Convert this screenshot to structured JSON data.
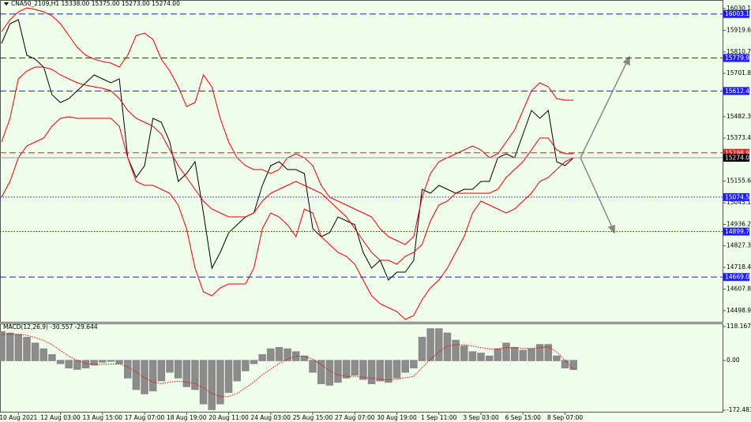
{
  "chart_data": [
    {
      "type": "line",
      "title": "CNA50_2109,H1  15338.00 15375.00 15273.00 15274.00",
      "ylim": [
        14442,
        16074
      ],
      "yticks": [
        {
          "value": 16030.15,
          "label": "16030.15"
        },
        {
          "value": 15919.6,
          "label": "15919.60"
        },
        {
          "value": 15810.7,
          "label": "15810.70"
        },
        {
          "value": 15701.8,
          "label": "15701.80"
        },
        {
          "value": 15482.35,
          "label": "15482.35"
        },
        {
          "value": 15373.45,
          "label": "15373.45"
        },
        {
          "value": 15155.65,
          "label": "15155.65"
        },
        {
          "value": 15045.1,
          "label": "15045.10"
        },
        {
          "value": 14936.2,
          "label": "14936.20"
        },
        {
          "value": 14827.3,
          "label": "14827.30"
        },
        {
          "value": 14718.4,
          "label": "14718.40"
        },
        {
          "value": 14607.85,
          "label": "14607.85"
        },
        {
          "value": 14498.95,
          "label": "14498.95"
        }
      ],
      "levels": [
        {
          "value": 16003.11,
          "label": "16003.11",
          "color": "#1c1cff",
          "dash": "dashed"
        },
        {
          "value": 15779.9,
          "label": "15779.90",
          "color": "#1c1cff",
          "dash": "dashed"
        },
        {
          "value": 15612.49,
          "label": "15612.49",
          "color": "#1c1cff",
          "dash": "dashed"
        },
        {
          "value": 15298.93,
          "label": "15298.93",
          "color": "#e02020",
          "dash": "dashed"
        },
        {
          "value": 15274.0,
          "label": "15274.00",
          "color": "#000000",
          "dash": "solid"
        },
        {
          "value": 15074.5,
          "label": "15074.50",
          "color": "#1c1cff",
          "dash": "dotted"
        },
        {
          "value": 14899.79,
          "label": "14899.79",
          "color": "#1c1cff",
          "dash": "dotted"
        },
        {
          "value": 14669.06,
          "label": "14669.06",
          "color": "#1c1cff",
          "dash": "dashed"
        }
      ],
      "series": [
        {
          "color": "#000000",
          "values": [
            15854,
            15954,
            15974,
            15794,
            15774,
            15734,
            15594,
            15554,
            15574,
            15614,
            15654,
            15694,
            15674,
            15654,
            15674,
            15274,
            15174,
            15234,
            15474,
            15454,
            15354,
            15154,
            15194,
            15254,
            14994,
            14714,
            14794,
            14894,
            14934,
            14974,
            14994,
            15134,
            15234,
            15254,
            15214,
            15214,
            15194,
            14914,
            14874,
            14894,
            14974,
            14954,
            14934,
            14794,
            14714,
            14754,
            14654,
            14694,
            14694,
            14754,
            15114,
            15094,
            15134,
            15114,
            15094,
            15114,
            15114,
            15154,
            15154,
            15274,
            15294,
            15274,
            15394,
            15514,
            15474,
            15514,
            15254,
            15234,
            15274
          ]
        },
        {
          "color": "#e00000",
          "values": [
            15914,
            15974,
            16014,
            16034,
            16026,
            16014,
            15994,
            15954,
            15894,
            15834,
            15794,
            15774,
            15762,
            15754,
            15734,
            15794,
            15894,
            15906,
            15874,
            15774,
            15714,
            15634,
            15534,
            15554,
            15694,
            15634,
            15474,
            15354,
            15274,
            15234,
            15214,
            15214,
            15194,
            15214,
            15274,
            15294,
            15274,
            15234,
            15134,
            15074,
            15054,
            15034,
            15014,
            14994,
            14974,
            14914,
            14874,
            14854,
            14834,
            14874,
            15074,
            15194,
            15254,
            15274,
            15294,
            15314,
            15334,
            15314,
            15274,
            15294,
            15354,
            15414,
            15514,
            15614,
            15654,
            15634,
            15574,
            15566,
            15566
          ]
        },
        {
          "color": "#e00000",
          "values": [
            15354,
            15474,
            15674,
            15714,
            15734,
            15734,
            15722,
            15694,
            15674,
            15654,
            15642,
            15634,
            15626,
            15614,
            15574,
            15514,
            15474,
            15454,
            15434,
            15394,
            15314,
            15234,
            15174,
            15114,
            15054,
            15014,
            14994,
            14974,
            14974,
            14974,
            14994,
            15054,
            15094,
            15114,
            15134,
            15154,
            15134,
            15114,
            15094,
            15054,
            15014,
            14974,
            14914,
            14854,
            14794,
            14754,
            14754,
            14734,
            14774,
            14794,
            14834,
            14954,
            15034,
            15054,
            15094,
            15094,
            15094,
            15094,
            15094,
            15114,
            15174,
            15214,
            15254,
            15314,
            15374,
            15374,
            15314,
            15294,
            15294
          ]
        },
        {
          "color": "#e00000",
          "values": [
            15074,
            15154,
            15274,
            15334,
            15354,
            15374,
            15434,
            15474,
            15482,
            15474,
            15474,
            15474,
            15474,
            15474,
            15434,
            15274,
            15154,
            15134,
            15134,
            15114,
            15094,
            15034,
            14914,
            14714,
            14594,
            14574,
            14614,
            14634,
            14634,
            14634,
            14714,
            14914,
            14994,
            14974,
            14934,
            14874,
            15014,
            14994,
            14874,
            14834,
            14794,
            14774,
            14734,
            14654,
            14574,
            14534,
            14514,
            14494,
            14454,
            14474,
            14554,
            14614,
            14654,
            14714,
            14794,
            14874,
            14994,
            15054,
            15034,
            15014,
            14994,
            15014,
            15054,
            15094,
            15154,
            15174,
            15214,
            15254,
            15274
          ]
        }
      ]
    },
    {
      "type": "bar",
      "title": "MACD(12,26,9) -30.557 -29.644",
      "ylim": [
        -178,
        129.1
      ],
      "yticks": [
        {
          "value": 118.167,
          "label": "118.167"
        },
        {
          "value": 0,
          "label": "0.00"
        },
        {
          "value": -172.483,
          "label": "-172.483"
        }
      ],
      "categories": [
        null,
        null,
        "10 Aug 2021",
        null,
        null,
        null,
        null,
        "12 Aug 03:00",
        null,
        null,
        null,
        null,
        "13 Aug 15:00",
        null,
        null,
        null,
        null,
        "17 Aug 07:00",
        null,
        null,
        null,
        null,
        "18 Aug 19:00",
        null,
        null,
        null,
        null,
        "20 Aug 11:00",
        null,
        null,
        null,
        null,
        "24 Aug 03:00",
        null,
        null,
        null,
        null,
        "25 Aug 15:00",
        null,
        null,
        null,
        null,
        "27 Aug 07:00",
        null,
        null,
        null,
        null,
        "30 Aug 19:00",
        null,
        null,
        null,
        null,
        "1 Sep 11:00",
        null,
        null,
        null,
        null,
        "3 Sep 03:00",
        null,
        null,
        null,
        null,
        "6 Sep 15:00",
        null,
        null,
        null,
        null,
        "8 Sep 07:00",
        null
      ],
      "series": [
        {
          "color": "#8c8c8c",
          "values": [
            100,
            95,
            90,
            80,
            60,
            40,
            20,
            -10,
            -25,
            -30,
            -25,
            -15,
            -5,
            -2,
            -10,
            -60,
            -100,
            -115,
            -105,
            -70,
            -40,
            -60,
            -90,
            -100,
            -150,
            -170,
            -150,
            -110,
            -70,
            -35,
            -10,
            20,
            40,
            45,
            40,
            30,
            15,
            -40,
            -80,
            -85,
            -75,
            -60,
            -50,
            -65,
            -80,
            -70,
            -75,
            -60,
            -40,
            -25,
            80,
            110,
            110,
            95,
            70,
            50,
            30,
            25,
            15,
            40,
            60,
            45,
            35,
            40,
            55,
            55,
            15,
            -25,
            -30.557
          ]
        },
        {
          "color": "#e00000",
          "line": "dotted",
          "values": [
            90,
            92,
            91,
            88,
            80,
            70,
            55,
            35,
            15,
            0,
            -10,
            -14,
            -13,
            -12,
            -12,
            -22,
            -40,
            -60,
            -75,
            -80,
            -75,
            -72,
            -75,
            -80,
            -95,
            -115,
            -125,
            -125,
            -115,
            -95,
            -75,
            -50,
            -30,
            -10,
            5,
            15,
            15,
            5,
            -15,
            -35,
            -50,
            -55,
            -55,
            -58,
            -62,
            -65,
            -67,
            -65,
            -60,
            -55,
            -25,
            5,
            30,
            50,
            55,
            55,
            50,
            45,
            40,
            40,
            45,
            45,
            42,
            42,
            45,
            48,
            30,
            0,
            -29.644
          ]
        }
      ]
    }
  ]
}
